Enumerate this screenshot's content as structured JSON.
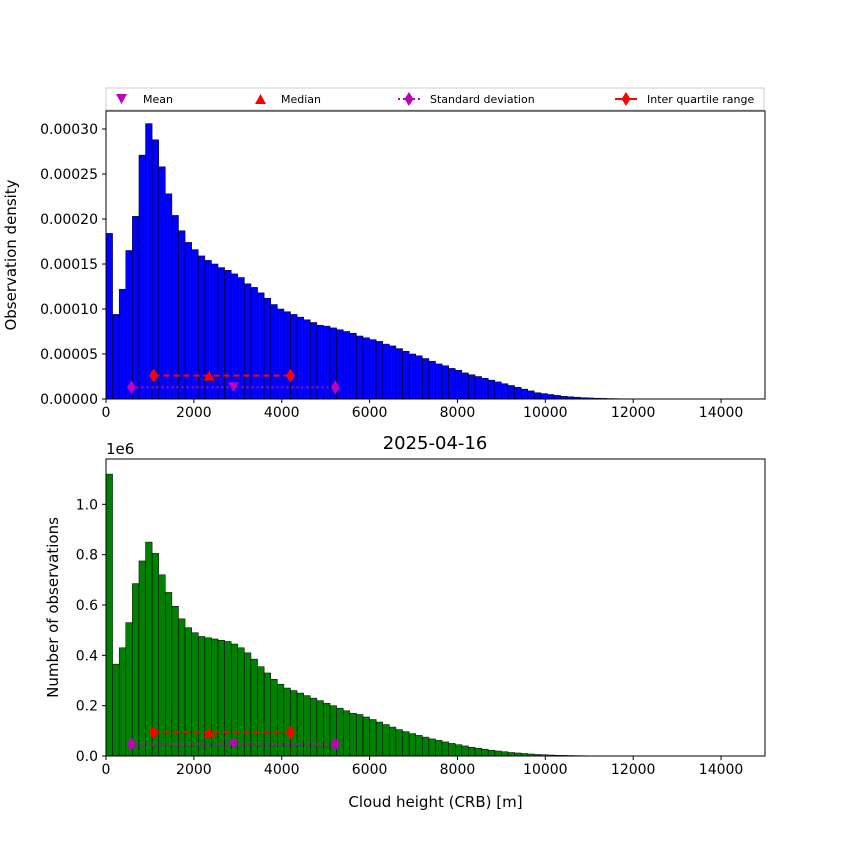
{
  "figure_title": "2025-04-16",
  "legend": {
    "mean": "Mean",
    "median": "Median",
    "std": "Standard deviation",
    "iqr": "Inter quartile range"
  },
  "colors": {
    "density_bars": "#0000ff",
    "count_bars": "#008000",
    "mean": "#bf00bf",
    "median": "#ff0000",
    "std": "#bf00bf",
    "iqr": "#ff0000"
  },
  "chart_data": [
    {
      "type": "bar",
      "panel": "top",
      "xlabel": "",
      "ylabel": "Observation density",
      "xlim": [
        0,
        15000
      ],
      "ylim": [
        0,
        0.00032
      ],
      "xticks": [
        0,
        2000,
        4000,
        6000,
        8000,
        10000,
        12000,
        14000
      ],
      "yticks": [
        0.0,
        5e-05,
        0.0001,
        0.00015,
        0.0002,
        0.00025,
        0.0003
      ],
      "ytick_labels": [
        "0.00000",
        "0.00005",
        "0.00010",
        "0.00015",
        "0.00020",
        "0.00025",
        "0.00030"
      ],
      "bin_width": 150,
      "values": [
        0.000184,
        9.4e-05,
        0.000122,
        0.000165,
        0.000203,
        0.000271,
        0.000306,
        0.000288,
        0.000258,
        0.000228,
        0.000204,
        0.000187,
        0.000174,
        0.000166,
        0.000159,
        0.000154,
        0.00015,
        0.000146,
        0.000143,
        0.000139,
        0.000135,
        0.000128,
        0.000124,
        0.000118,
        0.000112,
        0.000105,
        0.0001,
        9.7e-05,
        9.4e-05,
        9.1e-05,
        8.8e-05,
        8.5e-05,
        8.2e-05,
        8.1e-05,
        7.9e-05,
        7.7e-05,
        7.5e-05,
        7.3e-05,
        7e-05,
        6.8e-05,
        6.6e-05,
        6.4e-05,
        6.1e-05,
        5.9e-05,
        5.6e-05,
        5.3e-05,
        5e-05,
        4.8e-05,
        4.5e-05,
        4.2e-05,
        3.9e-05,
        3.7e-05,
        3.4e-05,
        3.2e-05,
        2.9e-05,
        2.7e-05,
        2.5e-05,
        2.3e-05,
        2.1e-05,
        1.9e-05,
        1.7e-05,
        1.5e-05,
        1.3e-05,
        1.1e-05,
        9e-06,
        7e-06,
        6e-06,
        5e-06,
        4e-06,
        3e-06,
        2.5e-06,
        2e-06,
        1.5e-06,
        1.2e-06,
        9e-07,
        7e-07,
        5e-07,
        4e-07,
        3e-07,
        2e-07,
        1.5e-07,
        1e-07,
        5e-08,
        3e-08
      ],
      "stats": {
        "mean": {
          "x": 2900,
          "y": 1.3e-05
        },
        "median": {
          "x": 2350,
          "y": 2.6e-05
        },
        "std": {
          "x": [
            580,
            5220
          ],
          "y": 1.3e-05
        },
        "iqr": {
          "x": [
            1080,
            4200
          ],
          "y": 2.6e-05
        }
      }
    },
    {
      "type": "bar",
      "panel": "bottom",
      "xlabel": "Cloud height (CRB) [m]",
      "ylabel": "Number of observations",
      "offset_label": "1e6",
      "xlim": [
        0,
        15000
      ],
      "ylim": [
        0,
        1.18
      ],
      "xticks": [
        0,
        2000,
        4000,
        6000,
        8000,
        10000,
        12000,
        14000
      ],
      "yticks": [
        0.0,
        0.2,
        0.4,
        0.6,
        0.8,
        1.0
      ],
      "ytick_labels": [
        "0.0",
        "0.2",
        "0.4",
        "0.6",
        "0.8",
        "1.0"
      ],
      "bin_width": 150,
      "values": [
        1.12,
        0.365,
        0.43,
        0.53,
        0.685,
        0.775,
        0.85,
        0.805,
        0.72,
        0.65,
        0.595,
        0.545,
        0.51,
        0.49,
        0.475,
        0.47,
        0.465,
        0.46,
        0.455,
        0.445,
        0.43,
        0.41,
        0.385,
        0.355,
        0.33,
        0.305,
        0.285,
        0.27,
        0.26,
        0.25,
        0.24,
        0.23,
        0.22,
        0.21,
        0.2,
        0.19,
        0.18,
        0.17,
        0.165,
        0.155,
        0.145,
        0.135,
        0.125,
        0.115,
        0.105,
        0.097,
        0.089,
        0.082,
        0.075,
        0.068,
        0.062,
        0.056,
        0.05,
        0.045,
        0.04,
        0.035,
        0.031,
        0.027,
        0.023,
        0.02,
        0.017,
        0.014,
        0.012,
        0.01,
        0.008,
        0.006,
        0.005,
        0.004,
        0.003,
        0.0025,
        0.002,
        0.0015,
        0.0012,
        0.001,
        0.0008,
        0.0006,
        0.0005,
        0.0004,
        0.0003,
        0.0002,
        0.00015,
        0.0001,
        5e-05,
        3e-05
      ],
      "stats": {
        "mean": {
          "x": 2900,
          "y": 0.047
        },
        "median": {
          "x": 2350,
          "y": 0.094
        },
        "std": {
          "x": [
            580,
            5220
          ],
          "y": 0.047
        },
        "iqr": {
          "x": [
            1080,
            4200
          ],
          "y": 0.094
        }
      }
    }
  ]
}
